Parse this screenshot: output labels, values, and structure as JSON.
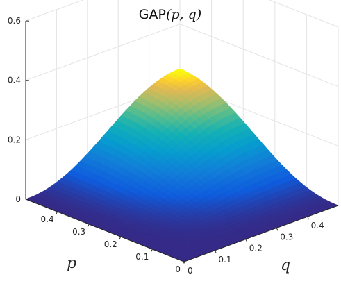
{
  "chart_data": {
    "type": "surface",
    "title_prefix": "GAP",
    "title_math": "(p, q)",
    "xlabel": "p",
    "ylabel": "q",
    "xlim": [
      0,
      0.5
    ],
    "ylim": [
      0,
      0.5
    ],
    "zlim": [
      0,
      0.6
    ],
    "xticks": [
      "0",
      "0.1",
      "0.2",
      "0.3",
      "0.4"
    ],
    "yticks": [
      "0",
      "0.1",
      "0.2",
      "0.3",
      "0.4"
    ],
    "zticks": [
      "0",
      "0.2",
      "0.4",
      "0.6"
    ],
    "peak": {
      "p": 0.5,
      "q": 0.5,
      "value": 0.25
    },
    "grid": true,
    "colormap": "parula"
  }
}
